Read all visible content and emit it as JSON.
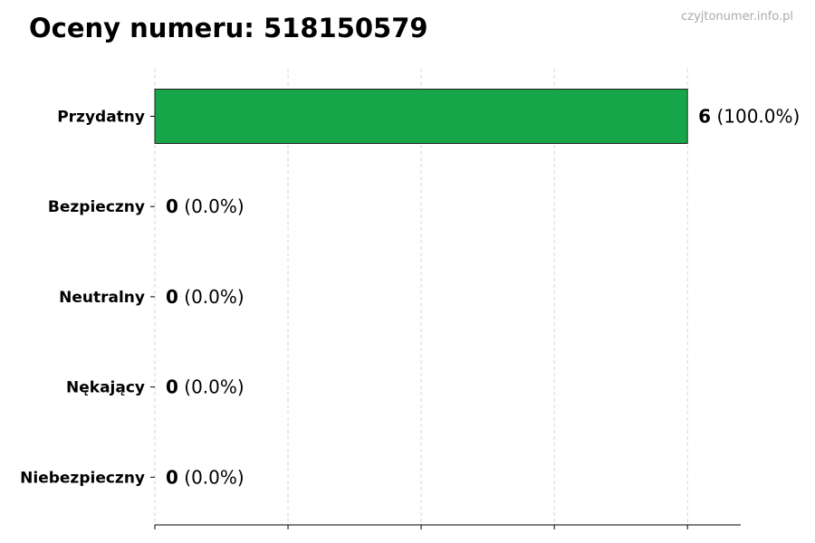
{
  "chart_data": {
    "type": "bar",
    "orientation": "horizontal",
    "title": "Oceny numeru: 518150579",
    "watermark": "czyjtonumer.info.pl",
    "categories": [
      "Przydatny",
      "Bezpieczny",
      "Neutralny",
      "Nękający",
      "Niebezpieczny"
    ],
    "values": [
      6,
      0,
      0,
      0,
      0
    ],
    "labels": [
      {
        "count": "6",
        "pct": "(100.0%)"
      },
      {
        "count": "0",
        "pct": "(0.0%)"
      },
      {
        "count": "0",
        "pct": "(0.0%)"
      },
      {
        "count": "0",
        "pct": "(0.0%)"
      },
      {
        "count": "0",
        "pct": "(0.0%)"
      }
    ],
    "xlim": [
      0,
      6.6
    ],
    "xticks": [
      0,
      1.5,
      3,
      4.5,
      6
    ],
    "xtick_labels_shown": false,
    "grid": "vertical dashed",
    "colors": {
      "bar": "#17a54a",
      "edge": "#222222",
      "grid": "#cccccc",
      "watermark": "#aaaaaa"
    }
  }
}
